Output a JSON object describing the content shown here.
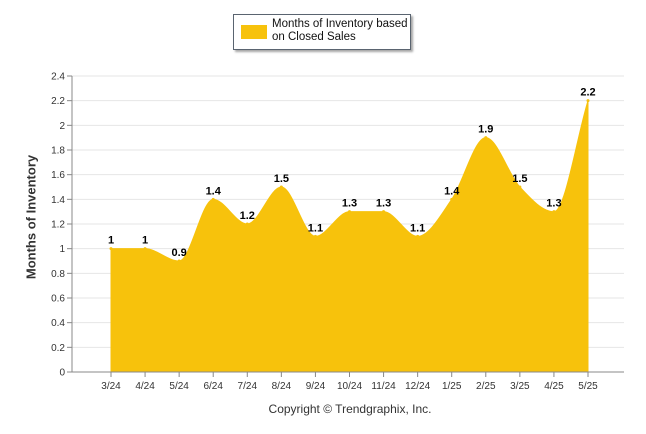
{
  "colors": {
    "fill": "#F7C20C",
    "grid": "#e6e6e6",
    "axis": "#888888",
    "text": "#333333"
  },
  "legend": {
    "label": "Months of Inventory based on Closed Sales"
  },
  "footer": {
    "copyright": "Copyright © Trendgraphix, Inc."
  },
  "chart_data": {
    "type": "area",
    "ylabel": "Months of Inventory",
    "ylim": [
      0,
      2.4
    ],
    "yticks": [
      "0",
      "0.2",
      "0.4",
      "0.6",
      "0.8",
      "1",
      "1.2",
      "1.4",
      "1.6",
      "1.8",
      "2",
      "2.2",
      "2.4"
    ],
    "grid": true,
    "legend_position": "top-center",
    "categories": [
      "3/24",
      "4/24",
      "5/24",
      "6/24",
      "7/24",
      "8/24",
      "9/24",
      "10/24",
      "11/24",
      "12/24",
      "1/25",
      "2/25",
      "3/25",
      "4/25",
      "5/25"
    ],
    "series": [
      {
        "name": "Months of Inventory based on Closed Sales",
        "values": [
          1,
          1,
          0.9,
          1.4,
          1.2,
          1.5,
          1.1,
          1.3,
          1.3,
          1.1,
          1.4,
          1.9,
          1.5,
          1.3,
          2.2
        ]
      }
    ]
  }
}
